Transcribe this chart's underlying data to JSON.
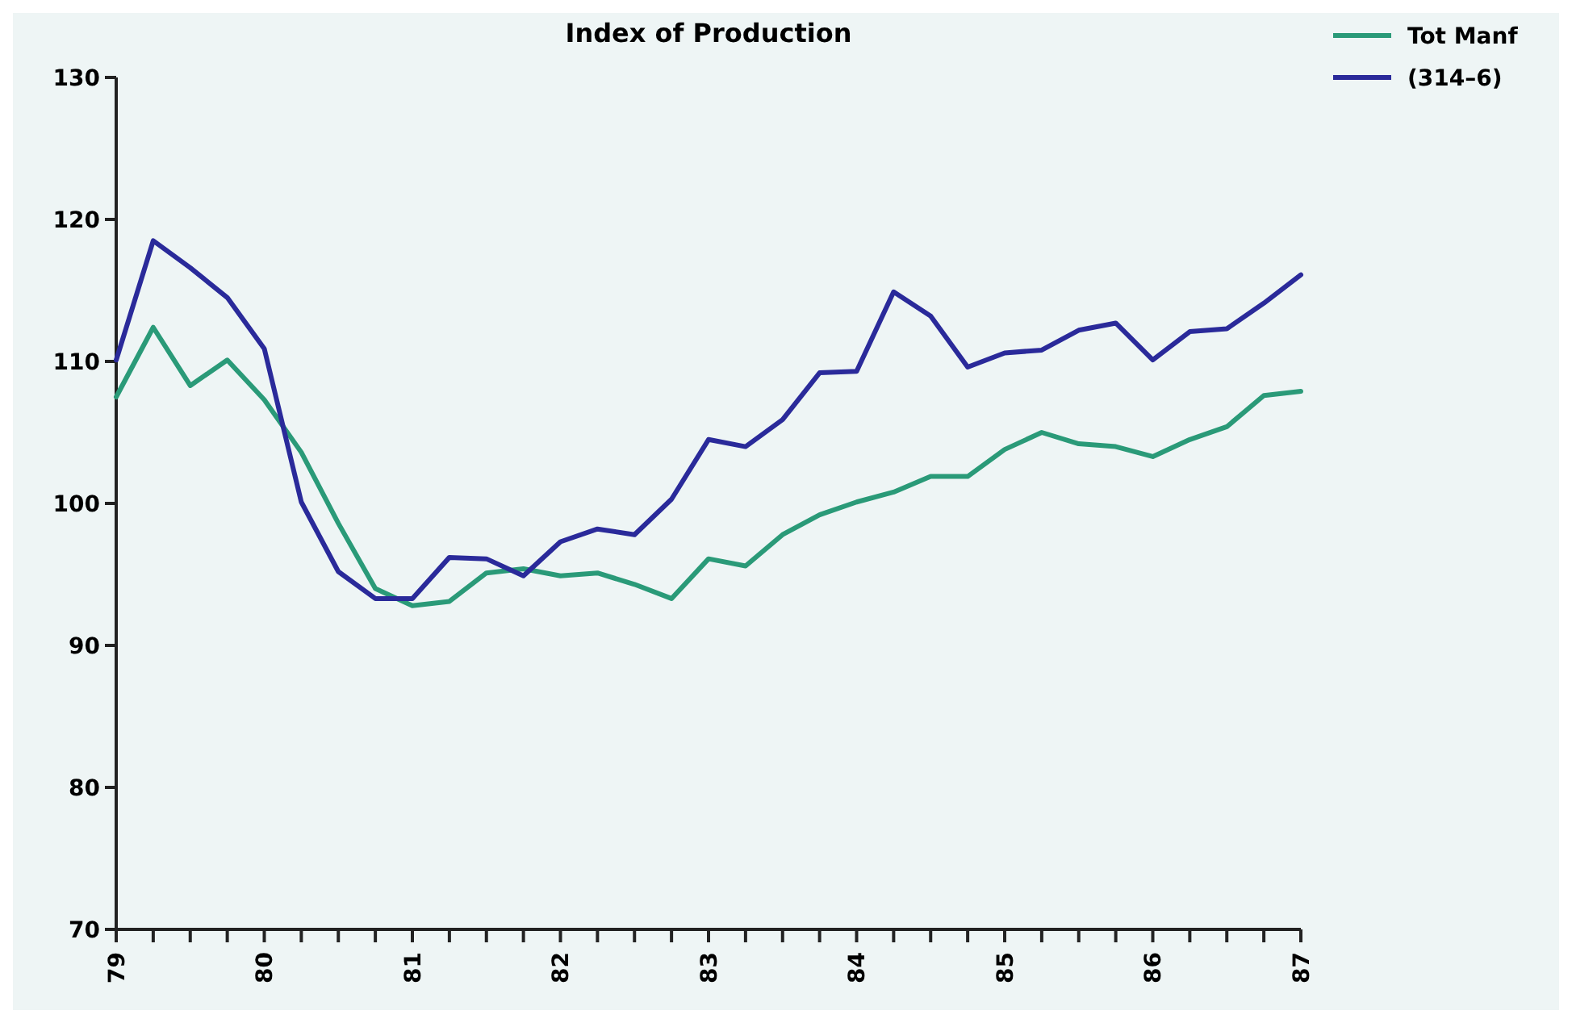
{
  "chart_data": {
    "type": "line",
    "title": "Index of Production",
    "x": [
      79,
      79.25,
      79.5,
      79.75,
      80,
      80.25,
      80.5,
      80.75,
      81,
      81.25,
      81.5,
      81.75,
      82,
      82.25,
      82.5,
      82.75,
      83,
      83.25,
      83.5,
      83.75,
      84,
      84.25,
      84.5,
      84.75,
      85,
      85.25,
      85.5,
      85.75,
      86,
      86.25,
      86.5,
      86.75,
      87
    ],
    "series": [
      {
        "name": "Tot Manf",
        "color": "#2a9a78",
        "values": [
          107.5,
          112.4,
          108.3,
          110.1,
          107.3,
          103.6,
          98.6,
          94,
          92.8,
          93.1,
          95.1,
          95.4,
          94.9,
          95.1,
          94.3,
          93.3,
          96.1,
          95.6,
          97.8,
          99.2,
          100.1,
          100.8,
          101.9,
          101.9,
          103.8,
          105,
          104.2,
          104,
          103.3,
          104.5,
          105.4,
          107.6,
          107.9
        ]
      },
      {
        "name": "(314–6)",
        "color": "#2a2a9a",
        "values": [
          110.1,
          118.5,
          116.6,
          114.5,
          110.9,
          100.1,
          95.2,
          93.3,
          93.3,
          96.2,
          96.1,
          94.9,
          97.3,
          98.2,
          97.8,
          100.3,
          104.5,
          104,
          105.9,
          109.2,
          109.3,
          114.9,
          113.2,
          109.6,
          110.6,
          110.8,
          112.2,
          112.7,
          110.1,
          112.1,
          112.3,
          114.1,
          116.1
        ]
      }
    ],
    "xlim": [
      79,
      87
    ],
    "xticks": [
      79,
      {
        "value": 79.25,
        "label": null
      },
      {
        "value": 79.5,
        "label": null
      },
      {
        "value": 79.75,
        "label": null
      },
      80,
      {
        "value": 80.25,
        "label": null
      },
      {
        "value": 80.5,
        "label": null
      },
      {
        "value": 80.75,
        "label": null
      },
      81,
      {
        "value": 81.25,
        "label": null
      },
      {
        "value": 81.5,
        "label": null
      },
      {
        "value": 81.75,
        "label": null
      },
      82,
      {
        "value": 82.25,
        "label": null
      },
      {
        "value": 82.5,
        "label": null
      },
      {
        "value": 82.75,
        "label": null
      },
      83,
      {
        "value": 83.25,
        "label": null
      },
      {
        "value": 83.5,
        "label": null
      },
      {
        "value": 83.75,
        "label": null
      },
      84,
      {
        "value": 84.25,
        "label": null
      },
      {
        "value": 84.5,
        "label": null
      },
      {
        "value": 84.75,
        "label": null
      },
      85,
      {
        "value": 85.25,
        "label": null
      },
      {
        "value": 85.5,
        "label": null
      },
      {
        "value": 85.75,
        "label": null
      },
      86,
      {
        "value": 86.25,
        "label": null
      },
      {
        "value": 86.5,
        "label": null
      },
      {
        "value": 86.75,
        "label": null
      },
      87
    ],
    "ylim": [
      70,
      130
    ],
    "yticks": [
      70,
      80,
      90,
      100,
      110,
      120,
      130
    ],
    "grid": false,
    "legend": "top right",
    "marker": "none",
    "line_style": "solid"
  }
}
